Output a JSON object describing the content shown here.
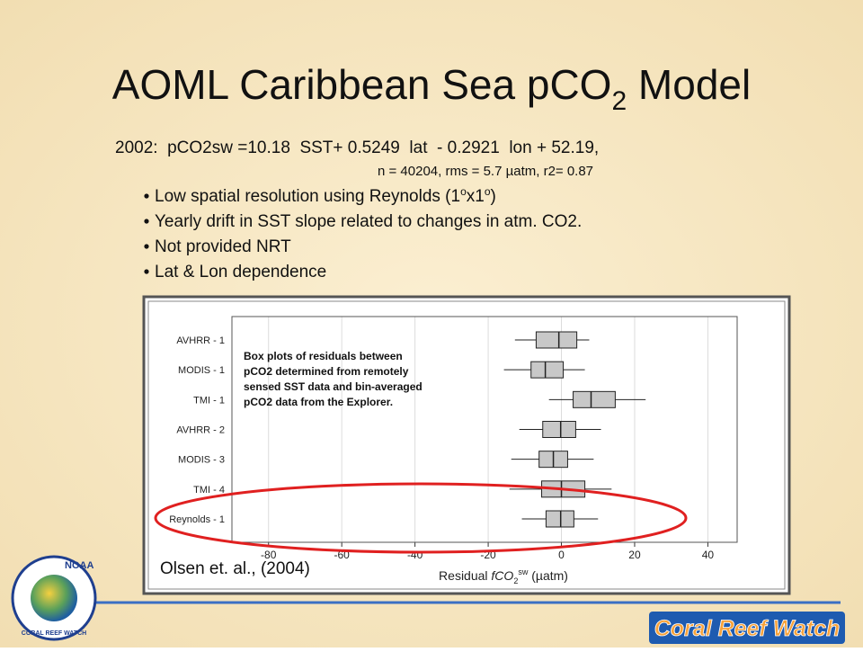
{
  "title": {
    "text": "AOML Caribbean Sea pCO",
    "sub": "2",
    "tail": " Model"
  },
  "equation": "2002:  pCO2sw =10.18  SST+ 0.5249  lat  - 0.2921  lon + 52.19,",
  "stats": "n = 40204, rms = 5.7 µatm, r2= 0.87",
  "bullets": [
    {
      "parts": [
        "Low spatial resolution using Reynolds (1",
        "o",
        "x1",
        "o",
        ")"
      ]
    },
    {
      "parts": [
        "Yearly drift in SST slope related to changes in atm. CO2."
      ]
    },
    {
      "parts": [
        "Not provided NRT"
      ]
    },
    {
      "parts": [
        "Lat & Lon dependence"
      ]
    }
  ],
  "chart_data": {
    "type": "box",
    "categories": [
      "AVHRR - 1",
      "MODIS - 1",
      "TMI - 1",
      "AVHRR - 2",
      "MODIS - 3",
      "TMI - 4",
      "Reynolds - 1"
    ],
    "whisker_low": [
      -12.7,
      -15.7,
      -3.4,
      -11.5,
      -13.7,
      -14.2,
      -10.8
    ],
    "q1": [
      -6.9,
      -8.3,
      3.2,
      -5.1,
      -6.1,
      -5.4,
      -4.2
    ],
    "median": [
      -0.7,
      -4.4,
      8.1,
      -0.2,
      -2.2,
      0,
      -0.2
    ],
    "q3": [
      4.2,
      0.5,
      14.7,
      3.9,
      1.7,
      6.4,
      3.4
    ],
    "whisker_high": [
      7.6,
      6.4,
      23,
      10.8,
      8.8,
      13.7,
      10
    ],
    "color": "#c8c8c8",
    "xlim": [
      -90,
      48
    ],
    "xticks": [
      -80,
      -60,
      -40,
      -20,
      0,
      20,
      40
    ],
    "grid": true,
    "x_label": {
      "pre": "Residual ",
      "f": "fCO",
      "sub": "2",
      "sup": "sw",
      "post": " (µatm)"
    },
    "annotation": [
      "Box plots of residuals between",
      "pCO2 determined from remotely",
      "sensed SST data and bin-averaged",
      "pCO2 data from the Explorer."
    ]
  },
  "citation": "Olsen et. al., (2004)",
  "logos": {
    "noaa": "NOAA",
    "ring": "CORAL REEF WATCH",
    "brand": "Coral Reef Watch"
  }
}
